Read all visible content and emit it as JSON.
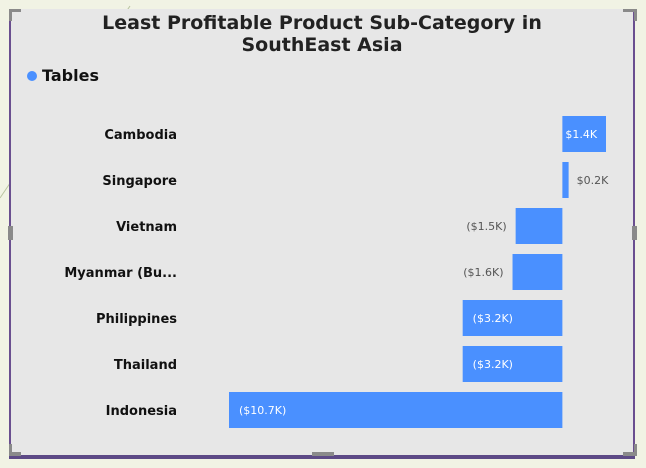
{
  "colors": {
    "bar": "#4a90ff",
    "panel": "#e7e7e7",
    "frame": "#6a4f8f",
    "background": "#f1f3e4"
  },
  "chart_data": {
    "type": "bar",
    "orientation": "horizontal",
    "title": "Least Profitable Product Sub-Category in SouthEast Asia",
    "title_lines": [
      "Least Profitable Product Sub-Category in",
      "SouthEast Asia"
    ],
    "legend": {
      "entries": [
        "Tables"
      ],
      "placement": "top-left"
    },
    "categories": [
      "Cambodia",
      "Singapore",
      "Vietnam",
      "Myanmar (Bu...",
      "Philippines",
      "Thailand",
      "Indonesia"
    ],
    "series": [
      {
        "name": "Tables",
        "values": [
          1.4,
          0.2,
          -1.5,
          -1.6,
          -3.2,
          -3.2,
          -10.7
        ],
        "labels": [
          "$1.4K",
          "$0.2K",
          "($1.5K)",
          "($1.6K)",
          "($3.2K)",
          "($3.2K)",
          "($10.7K)"
        ]
      }
    ],
    "unit": "$K",
    "xlim": [
      -10.7,
      1.4
    ],
    "grid": false
  }
}
